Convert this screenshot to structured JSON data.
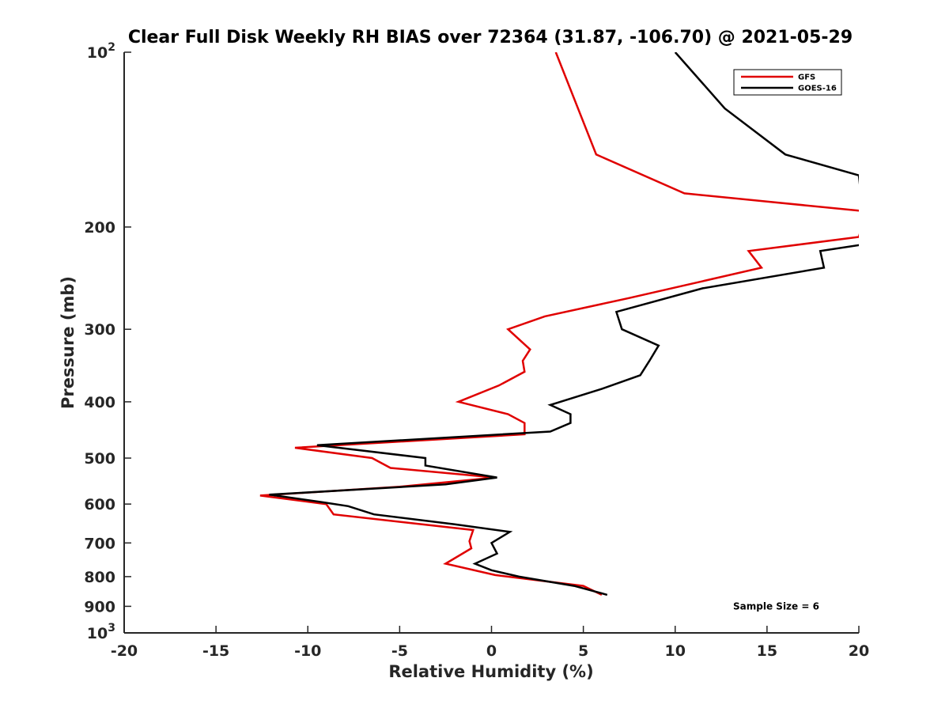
{
  "chart_data": {
    "type": "line",
    "title": "Clear Full Disk Weekly RH BIAS over 72364 (31.87, -106.70) @ 2021-05-29",
    "xlabel": "Relative Humidity (%)",
    "ylabel": "Pressure (mb)",
    "xlim": [
      -20,
      20
    ],
    "ylim": [
      100,
      1000
    ],
    "y_scale": "log",
    "y_reversed": true,
    "grid": false,
    "legend_position": "top-right",
    "x_ticks": [
      "-20",
      "-15",
      "-10",
      "-5",
      "0",
      "5",
      "10",
      "15",
      "20"
    ],
    "y_ticks": [
      {
        "value": 100,
        "base": "10",
        "exp": "2"
      },
      {
        "value": 200,
        "base": "200",
        "exp": ""
      },
      {
        "value": 300,
        "base": "300",
        "exp": ""
      },
      {
        "value": 400,
        "base": "400",
        "exp": ""
      },
      {
        "value": 500,
        "base": "500",
        "exp": ""
      },
      {
        "value": 600,
        "base": "600",
        "exp": ""
      },
      {
        "value": 700,
        "base": "700",
        "exp": ""
      },
      {
        "value": 800,
        "base": "800",
        "exp": ""
      },
      {
        "value": 900,
        "base": "900",
        "exp": ""
      },
      {
        "value": 1000,
        "base": "10",
        "exp": "3"
      }
    ],
    "series": [
      {
        "name": "GFS",
        "color": "#e00000",
        "points": [
          [
            3.5,
            100
          ],
          [
            5.7,
            150
          ],
          [
            10.5,
            175
          ],
          [
            20.4,
            188
          ],
          [
            20.0,
            208
          ],
          [
            14.0,
            220
          ],
          [
            14.7,
            235
          ],
          [
            7.5,
            265
          ],
          [
            2.9,
            285
          ],
          [
            0.9,
            300
          ],
          [
            2.1,
            325
          ],
          [
            1.7,
            340
          ],
          [
            1.8,
            355
          ],
          [
            0.4,
            375
          ],
          [
            -1.8,
            400
          ],
          [
            0.9,
            420
          ],
          [
            1.8,
            435
          ],
          [
            1.8,
            455
          ],
          [
            -10.7,
            480
          ],
          [
            -6.5,
            500
          ],
          [
            -5.5,
            520
          ],
          [
            0.2,
            540
          ],
          [
            -5.0,
            560
          ],
          [
            -12.6,
            580
          ],
          [
            -9.0,
            600
          ],
          [
            -8.6,
            625
          ],
          [
            -1.0,
            665
          ],
          [
            -1.2,
            695
          ],
          [
            -1.1,
            715
          ],
          [
            -2.5,
            760
          ],
          [
            0.2,
            795
          ],
          [
            5.0,
            830
          ],
          [
            6.0,
            860
          ]
        ]
      },
      {
        "name": "GOES-16",
        "color": "#000000",
        "points": [
          [
            10.0,
            100
          ],
          [
            12.7,
            125
          ],
          [
            16.0,
            150
          ],
          [
            20.0,
            163
          ],
          [
            20.4,
            214
          ],
          [
            17.9,
            220
          ],
          [
            18.1,
            235
          ],
          [
            11.5,
            255
          ],
          [
            6.8,
            280
          ],
          [
            7.1,
            300
          ],
          [
            9.1,
            320
          ],
          [
            8.6,
            340
          ],
          [
            8.1,
            360
          ],
          [
            6.0,
            380
          ],
          [
            3.2,
            405
          ],
          [
            4.3,
            420
          ],
          [
            4.3,
            435
          ],
          [
            3.2,
            450
          ],
          [
            -9.5,
            475
          ],
          [
            -3.6,
            500
          ],
          [
            -3.6,
            515
          ],
          [
            0.3,
            540
          ],
          [
            -2.5,
            555
          ],
          [
            -12.1,
            578
          ],
          [
            -9.3,
            595
          ],
          [
            -7.8,
            605
          ],
          [
            -6.4,
            625
          ],
          [
            -2.0,
            650
          ],
          [
            1.0,
            670
          ],
          [
            0.0,
            700
          ],
          [
            0.3,
            730
          ],
          [
            -0.9,
            760
          ],
          [
            0.0,
            780
          ],
          [
            1.5,
            800
          ],
          [
            4.5,
            830
          ],
          [
            6.3,
            860
          ]
        ]
      }
    ],
    "annotations": [
      {
        "text": "Sample Size = 6",
        "x": 15.5,
        "y": 900
      }
    ]
  }
}
